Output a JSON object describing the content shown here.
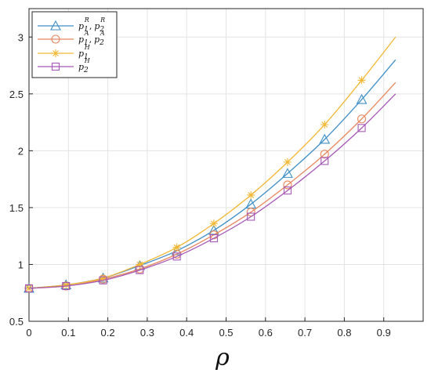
{
  "chart_data": {
    "type": "line",
    "title": "",
    "xlabel": "ρ",
    "ylabel": "",
    "xlim": [
      0,
      1.0
    ],
    "ylim": [
      0.5,
      3.25
    ],
    "xticks": [
      "0",
      "0.1",
      "0.2",
      "0.3",
      "0.4",
      "0.5",
      "0.6",
      "0.7",
      "0.8",
      "0.9"
    ],
    "yticks": [
      "0.5",
      "1",
      "1.5",
      "2",
      "2.5",
      "3"
    ],
    "grid": true,
    "legend_position": "top-left",
    "series": [
      {
        "name": "p1R, p2R",
        "color": "#3f8fc6",
        "marker": "triangle",
        "x": [
          0,
          0.094,
          0.188,
          0.281,
          0.375,
          0.469,
          0.563,
          0.656,
          0.75,
          0.844,
          0.93
        ],
        "y": [
          0.79,
          0.82,
          0.88,
          0.99,
          1.12,
          1.3,
          1.53,
          1.8,
          2.1,
          2.45,
          2.8
        ]
      },
      {
        "name": "p1A, p2A",
        "color": "#e8885e",
        "marker": "circle",
        "x": [
          0,
          0.094,
          0.188,
          0.281,
          0.375,
          0.469,
          0.563,
          0.656,
          0.75,
          0.844,
          0.93
        ],
        "y": [
          0.79,
          0.81,
          0.87,
          0.96,
          1.09,
          1.26,
          1.46,
          1.7,
          1.97,
          2.28,
          2.6
        ]
      },
      {
        "name": "p1H",
        "color": "#f2b733",
        "marker": "asterisk",
        "x": [
          0,
          0.094,
          0.188,
          0.281,
          0.375,
          0.469,
          0.563,
          0.656,
          0.75,
          0.844,
          0.93
        ],
        "y": [
          0.79,
          0.82,
          0.88,
          1.0,
          1.15,
          1.36,
          1.61,
          1.9,
          2.23,
          2.62,
          3.0
        ]
      },
      {
        "name": "p2H",
        "color": "#a558b5",
        "marker": "square",
        "x": [
          0,
          0.094,
          0.188,
          0.281,
          0.375,
          0.469,
          0.563,
          0.656,
          0.75,
          0.844,
          0.93
        ],
        "y": [
          0.79,
          0.81,
          0.86,
          0.95,
          1.07,
          1.23,
          1.42,
          1.65,
          1.91,
          2.2,
          2.5
        ]
      }
    ]
  },
  "legend": [
    {
      "base1": "p",
      "sub1": "1",
      "sup1": "R",
      "sep": ",",
      "base2": "p",
      "sub2": "2",
      "sup2": "R"
    },
    {
      "base1": "p",
      "sub1": "1",
      "sup1": "A",
      "sep": ",",
      "base2": "p",
      "sub2": "2",
      "sup2": "A"
    },
    {
      "base1": "p",
      "sub1": "1",
      "sup1": "H",
      "sep": "",
      "base2": "",
      "sub2": "",
      "sup2": ""
    },
    {
      "base1": "p",
      "sub1": "2",
      "sup1": "H",
      "sep": "",
      "base2": "",
      "sub2": "",
      "sup2": ""
    }
  ]
}
